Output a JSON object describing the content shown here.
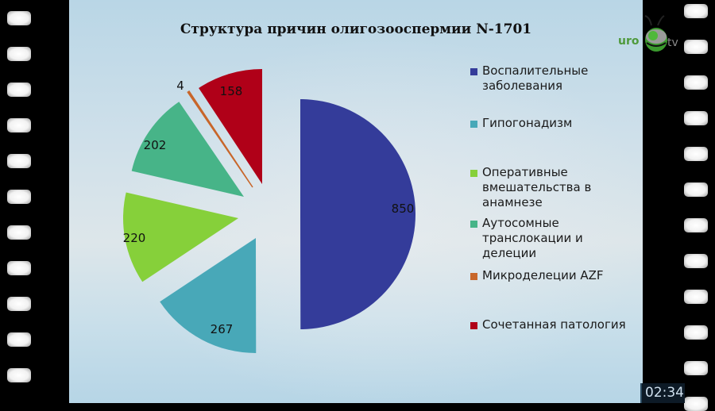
{
  "slide": {
    "title": "Структура причин олигозооспермии N-1701"
  },
  "chart_data": {
    "type": "pie",
    "title": "Структура причин олигозооспермии N-1701",
    "total": 1701,
    "exploded": true,
    "legend_position": "right",
    "categories": [
      "Воспалительные заболевания",
      "Гипогонадизм",
      "Оперативные вмешательства в анамнезе",
      "Аутосомные транслокации и делеции",
      "Микроделеции AZF",
      "Сочетанная патология"
    ],
    "values": [
      850,
      267,
      220,
      202,
      4,
      158
    ],
    "colors": [
      "#343c9a",
      "#48a8b8",
      "#86d03a",
      "#47b488",
      "#c8662a",
      "#b00018"
    ],
    "data_labels": [
      "850",
      "267",
      "220",
      "202",
      "4",
      "158"
    ]
  },
  "legend": {
    "items": [
      {
        "label": "Воспалительные заболевания",
        "color": "#343c9a"
      },
      {
        "label": "Гипогонадизм",
        "color": "#48a8b8"
      },
      {
        "label": "Оперативные вмешательства в анамнезе",
        "color": "#86d03a"
      },
      {
        "label": "Аутосомные транслокации и делеции",
        "color": "#47b488"
      },
      {
        "label": "Микроделеции AZF",
        "color": "#c8662a"
      },
      {
        "label": "Сочетанная патология",
        "color": "#b00018"
      }
    ]
  },
  "logo": {
    "left_text": "uro",
    "right_text": "tv",
    "icon": "bug-icon"
  },
  "player": {
    "timestamp": "02:34"
  }
}
